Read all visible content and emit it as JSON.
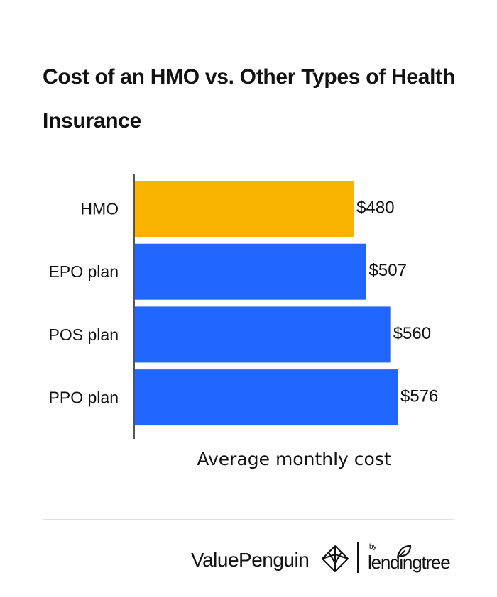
{
  "chart_data": {
    "type": "bar",
    "orientation": "horizontal",
    "title": "Cost of an HMO vs. Other Types of Health Insurance",
    "xlabel": "Average monthly cost",
    "ylabel": "",
    "categories": [
      "HMO",
      "EPO plan",
      "POS plan",
      "PPO plan"
    ],
    "values": [
      480,
      507,
      560,
      576
    ],
    "value_labels": [
      "$480",
      "$507",
      "$560",
      "$576"
    ],
    "bar_colors": [
      "#F9B401",
      "#2167FF",
      "#2167FF",
      "#2167FF"
    ],
    "xlim": [
      0,
      576
    ],
    "grid": false,
    "legend": "none"
  },
  "footer": {
    "brand": "ValuePenguin",
    "by": "by",
    "partner": "lendingtree"
  }
}
